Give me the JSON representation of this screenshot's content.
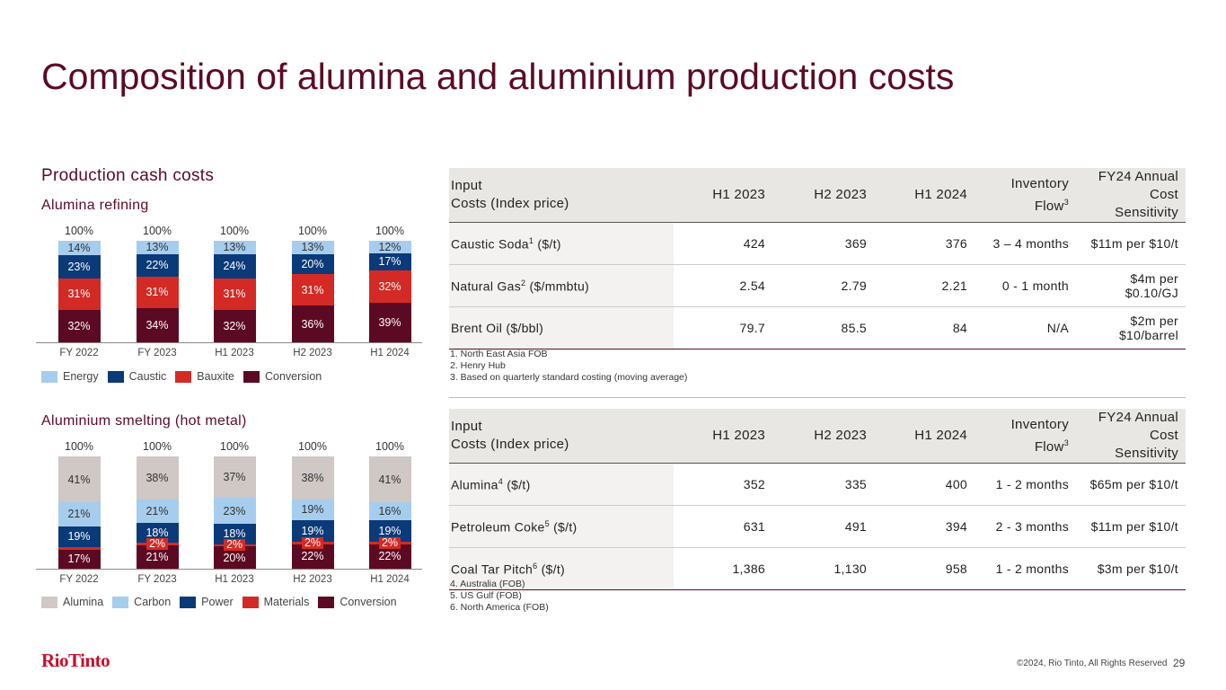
{
  "title": "Composition of alumina and aluminium production costs",
  "section": "Production cash costs",
  "chart_data": [
    {
      "type": "bar",
      "stacked": true,
      "title": "Alumina refining",
      "categories": [
        "FY 2022",
        "FY 2023",
        "H1 2023",
        "H2 2023",
        "H1 2024"
      ],
      "totals": [
        "100%",
        "100%",
        "100%",
        "100%",
        "100%"
      ],
      "series": [
        {
          "name": "Conversion",
          "color": "#5c0a23",
          "values": [
            32,
            34,
            32,
            36,
            39
          ],
          "labels": [
            "32%",
            "34%",
            "32%",
            "36%",
            "39%"
          ]
        },
        {
          "name": "Bauxite",
          "color": "#d42a25",
          "values": [
            31,
            31,
            31,
            31,
            32
          ],
          "labels": [
            "31%",
            "31%",
            "31%",
            "31%",
            "32%"
          ]
        },
        {
          "name": "Caustic",
          "color": "#0b3a78",
          "values": [
            23,
            22,
            24,
            20,
            17
          ],
          "labels": [
            "23%",
            "22%",
            "24%",
            "20%",
            "17%"
          ]
        },
        {
          "name": "Energy",
          "color": "#a6cdee",
          "values": [
            14,
            13,
            13,
            13,
            12
          ],
          "labels": [
            "14%",
            "13%",
            "13%",
            "13%",
            "12%"
          ]
        }
      ],
      "legend": [
        "Energy",
        "Caustic",
        "Bauxite",
        "Conversion"
      ],
      "ylim": [
        0,
        100
      ]
    },
    {
      "type": "bar",
      "stacked": true,
      "title": "Aluminium smelting (hot metal)",
      "categories": [
        "FY 2022",
        "FY 2023",
        "H1 2023",
        "H2 2023",
        "H1 2024"
      ],
      "totals": [
        "100%",
        "100%",
        "100%",
        "100%",
        "100%"
      ],
      "series": [
        {
          "name": "Conversion",
          "color": "#5c0a23",
          "values": [
            17,
            21,
            20,
            22,
            22
          ],
          "labels": [
            "17%",
            "21%",
            "20%",
            "22%",
            "22%"
          ]
        },
        {
          "name": "Materials",
          "color": "#d42a25",
          "values": [
            2,
            2,
            2,
            2,
            2
          ],
          "labels": [
            "",
            "2%",
            "2%",
            "2%",
            "2%"
          ]
        },
        {
          "name": "Power",
          "color": "#0b3a78",
          "values": [
            19,
            18,
            18,
            19,
            19
          ],
          "labels": [
            "19%",
            "18%",
            "18%",
            "19%",
            "19%"
          ]
        },
        {
          "name": "Carbon",
          "color": "#a6cdee",
          "values": [
            21,
            21,
            23,
            19,
            16
          ],
          "labels": [
            "21%",
            "21%",
            "23%",
            "19%",
            "16%"
          ]
        },
        {
          "name": "Alumina",
          "color": "#cfc8c5",
          "values": [
            41,
            38,
            37,
            38,
            41
          ],
          "labels": [
            "41%",
            "38%",
            "37%",
            "38%",
            "41%"
          ]
        }
      ],
      "legend": [
        "Alumina",
        "Carbon",
        "Power",
        "Materials",
        "Conversion"
      ],
      "ylim": [
        0,
        100
      ]
    }
  ],
  "table1": {
    "headers": [
      "Input\nCosts (Index price)",
      "H1 2023",
      "H2 2023",
      "H1 2024",
      "Inventory\nFlow3",
      "FY24 Annual Cost\nSensitivity"
    ],
    "rows": [
      [
        "Caustic Soda1 ($/t)",
        "424",
        "369",
        "376",
        "3 – 4 months",
        "$11m per $10/t"
      ],
      [
        "Natural Gas2 ($/mmbtu)",
        "2.54",
        "2.79",
        "2.21",
        "0 - 1 month",
        "$4m per $0.10/GJ"
      ],
      [
        "Brent Oil ($/bbl)",
        "79.7",
        "85.5",
        "84",
        "N/A",
        "$2m per $10/barrel"
      ]
    ],
    "notes": [
      "1. North East Asia FOB",
      "2. Henry Hub",
      "3. Based on quarterly standard costing (moving average)"
    ]
  },
  "table2": {
    "headers": [
      "Input\nCosts (Index price)",
      "H1 2023",
      "H2 2023",
      "H1 2024",
      "Inventory\nFlow3",
      "FY24 Annual Cost\nSensitivity"
    ],
    "rows": [
      [
        "Alumina4 ($/t)",
        "352",
        "335",
        "400",
        "1 - 2 months",
        "$65m per $10/t"
      ],
      [
        "Petroleum Coke5 ($/t)",
        "631",
        "491",
        "394",
        "2 - 3 months",
        "$11m per $10/t"
      ],
      [
        "Coal Tar Pitch6 ($/t)",
        "1,386",
        "1,130",
        "958",
        "1 - 2 months",
        "$3m per $10/t"
      ]
    ],
    "notes": [
      "4. Australia (FOB)",
      "5. US Gulf (FOB)",
      "6. North America (FOB)"
    ]
  },
  "logo": "RioTinto",
  "copyright": "©2024, Rio Tinto, All Rights Reserved",
  "page_number": "29"
}
